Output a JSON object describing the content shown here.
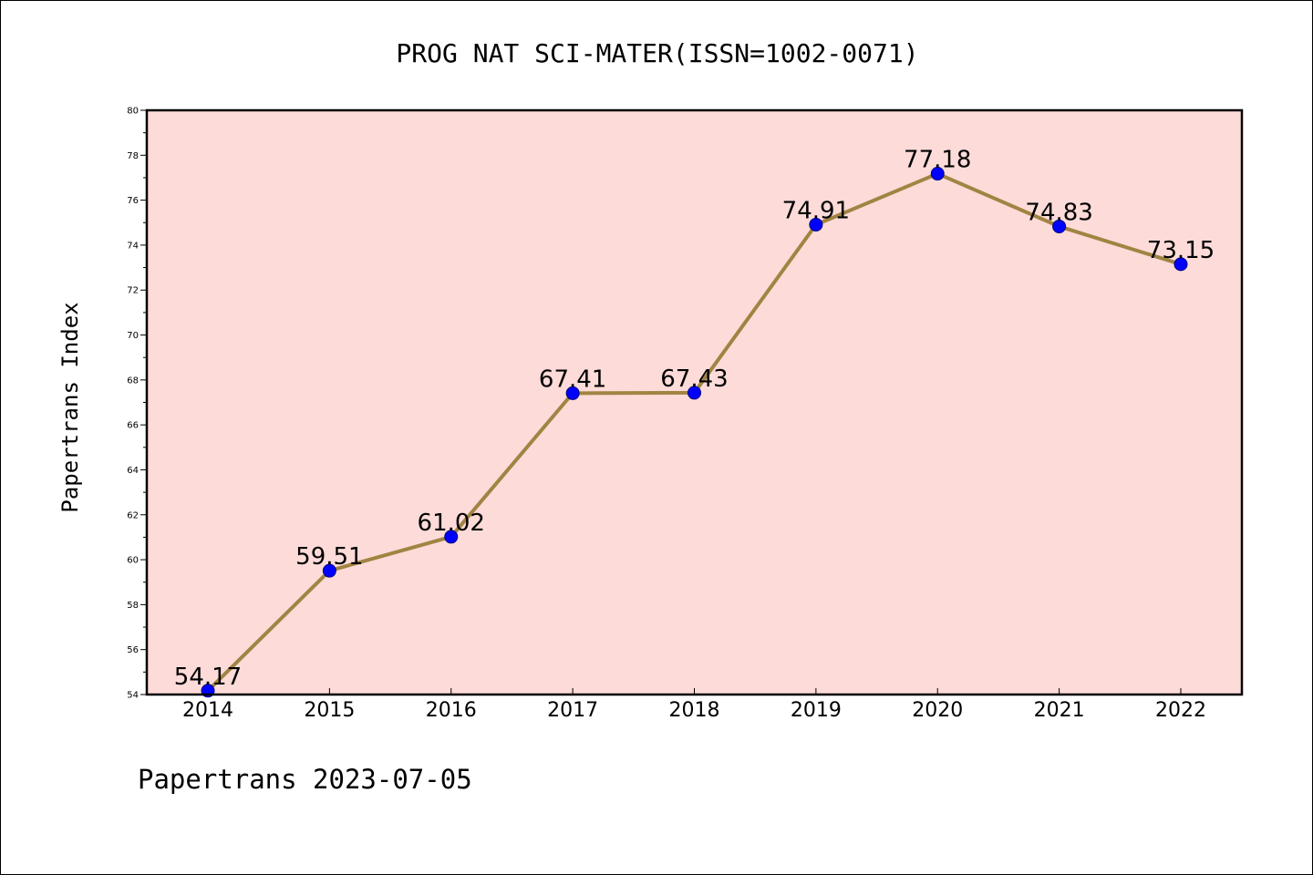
{
  "chart_data": {
    "type": "line",
    "title": "PROG NAT SCI-MATER(ISSN=1002-0071)",
    "ylabel": "Papertrans Index",
    "xlabel": "",
    "footer": "Papertrans 2023-07-05",
    "categories": [
      "2014",
      "2015",
      "2016",
      "2017",
      "2018",
      "2019",
      "2020",
      "2021",
      "2022"
    ],
    "values": [
      54.17,
      59.51,
      61.02,
      67.41,
      67.43,
      74.91,
      77.18,
      74.83,
      73.15
    ],
    "value_labels": [
      "54.17",
      "59.51",
      "61.02",
      "67.41",
      "67.43",
      "74.91",
      "77.18",
      "74.83",
      "73.15"
    ],
    "ylim": [
      54,
      80
    ],
    "yticks": [
      54,
      56,
      58,
      60,
      62,
      64,
      66,
      68,
      70,
      72,
      74,
      76,
      78,
      80
    ],
    "grid": false,
    "colors": {
      "plot_background": "#fddbd9",
      "line": "#a08442",
      "marker_fill": "#0000ff",
      "marker_edge": "#000080"
    }
  }
}
